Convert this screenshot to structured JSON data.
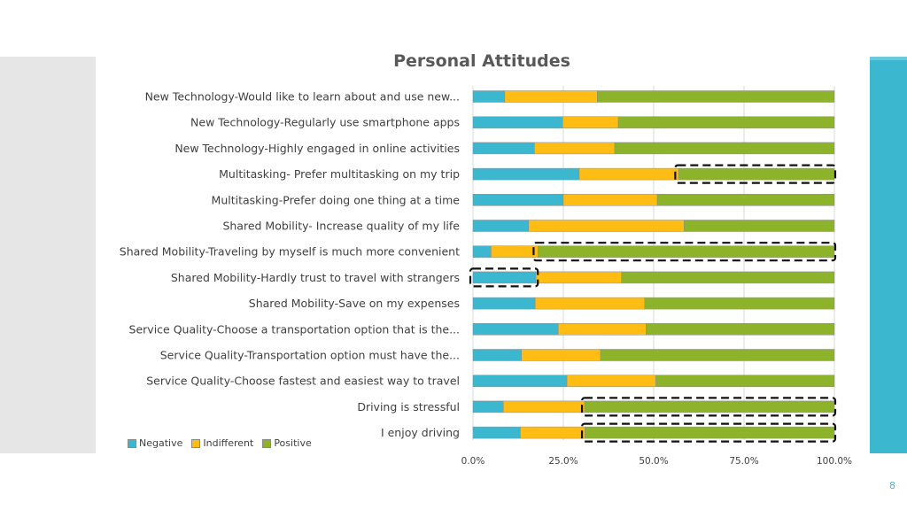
{
  "slide": {
    "page_number": "8"
  },
  "colors": {
    "negative": "#3cb7d0",
    "indifferent": "#ffbd14",
    "positive": "#8cb32a",
    "accent_bar": "#3cb7d0",
    "left_panel": "#e6e6e6"
  },
  "chart_data": {
    "type": "bar",
    "orientation": "horizontal",
    "stacked": "percent",
    "title": "Personal Attitudes",
    "categories": [
      "New Technology-Would like to learn about and use new...",
      "New Technology-Regularly use smartphone apps",
      "New Technology-Highly engaged in online activities",
      "Multitasking- Prefer multitasking on my trip",
      "Multitasking-Prefer doing one thing at a time",
      "Shared Mobility- Increase quality of my life",
      "Shared Mobility-Traveling by myself is much more convenient",
      "Shared Mobility-Hardly trust to travel with strangers",
      "Shared Mobility-Save on my expenses",
      "Service Quality-Choose a transportation option that is the...",
      "Service Quality-Transportation option must have the...",
      "Service Quality-Choose fastest and easiest way to travel",
      "Driving is stressful",
      "I enjoy driving"
    ],
    "series": [
      {
        "name": "Negative",
        "color": "#3cb7d0",
        "values": [
          8.8,
          24.8,
          17.0,
          29.4,
          25.0,
          15.4,
          5.0,
          17.4,
          17.2,
          23.6,
          13.4,
          26.0,
          8.4,
          13.1
        ]
      },
      {
        "name": "Indifferent",
        "color": "#ffbd14",
        "values": [
          25.6,
          15.4,
          22.2,
          27.5,
          26.0,
          43.0,
          13.0,
          23.7,
          30.3,
          24.3,
          21.9,
          24.6,
          22.5,
          17.9
        ]
      },
      {
        "name": "Positive",
        "color": "#8cb32a",
        "values": [
          65.6,
          59.8,
          60.8,
          43.1,
          49.0,
          41.6,
          82.0,
          58.9,
          52.5,
          52.1,
          64.7,
          49.4,
          69.1,
          69.0
        ]
      }
    ],
    "x_ticks": [
      "0.0%",
      "25.0%",
      "50.0%",
      "75.0%",
      "100.0%"
    ],
    "xlim": [
      0,
      100
    ],
    "grid": true,
    "legend": "bottom-left",
    "highlights": [
      {
        "category_index": 3,
        "from": 56.7,
        "to": 100
      },
      {
        "category_index": 6,
        "from": 17.5,
        "to": 100
      },
      {
        "category_index": 7,
        "from": 0,
        "to": 17.7
      },
      {
        "category_index": 12,
        "from": 30.9,
        "to": 100
      },
      {
        "category_index": 13,
        "from": 30.9,
        "to": 100
      }
    ]
  }
}
